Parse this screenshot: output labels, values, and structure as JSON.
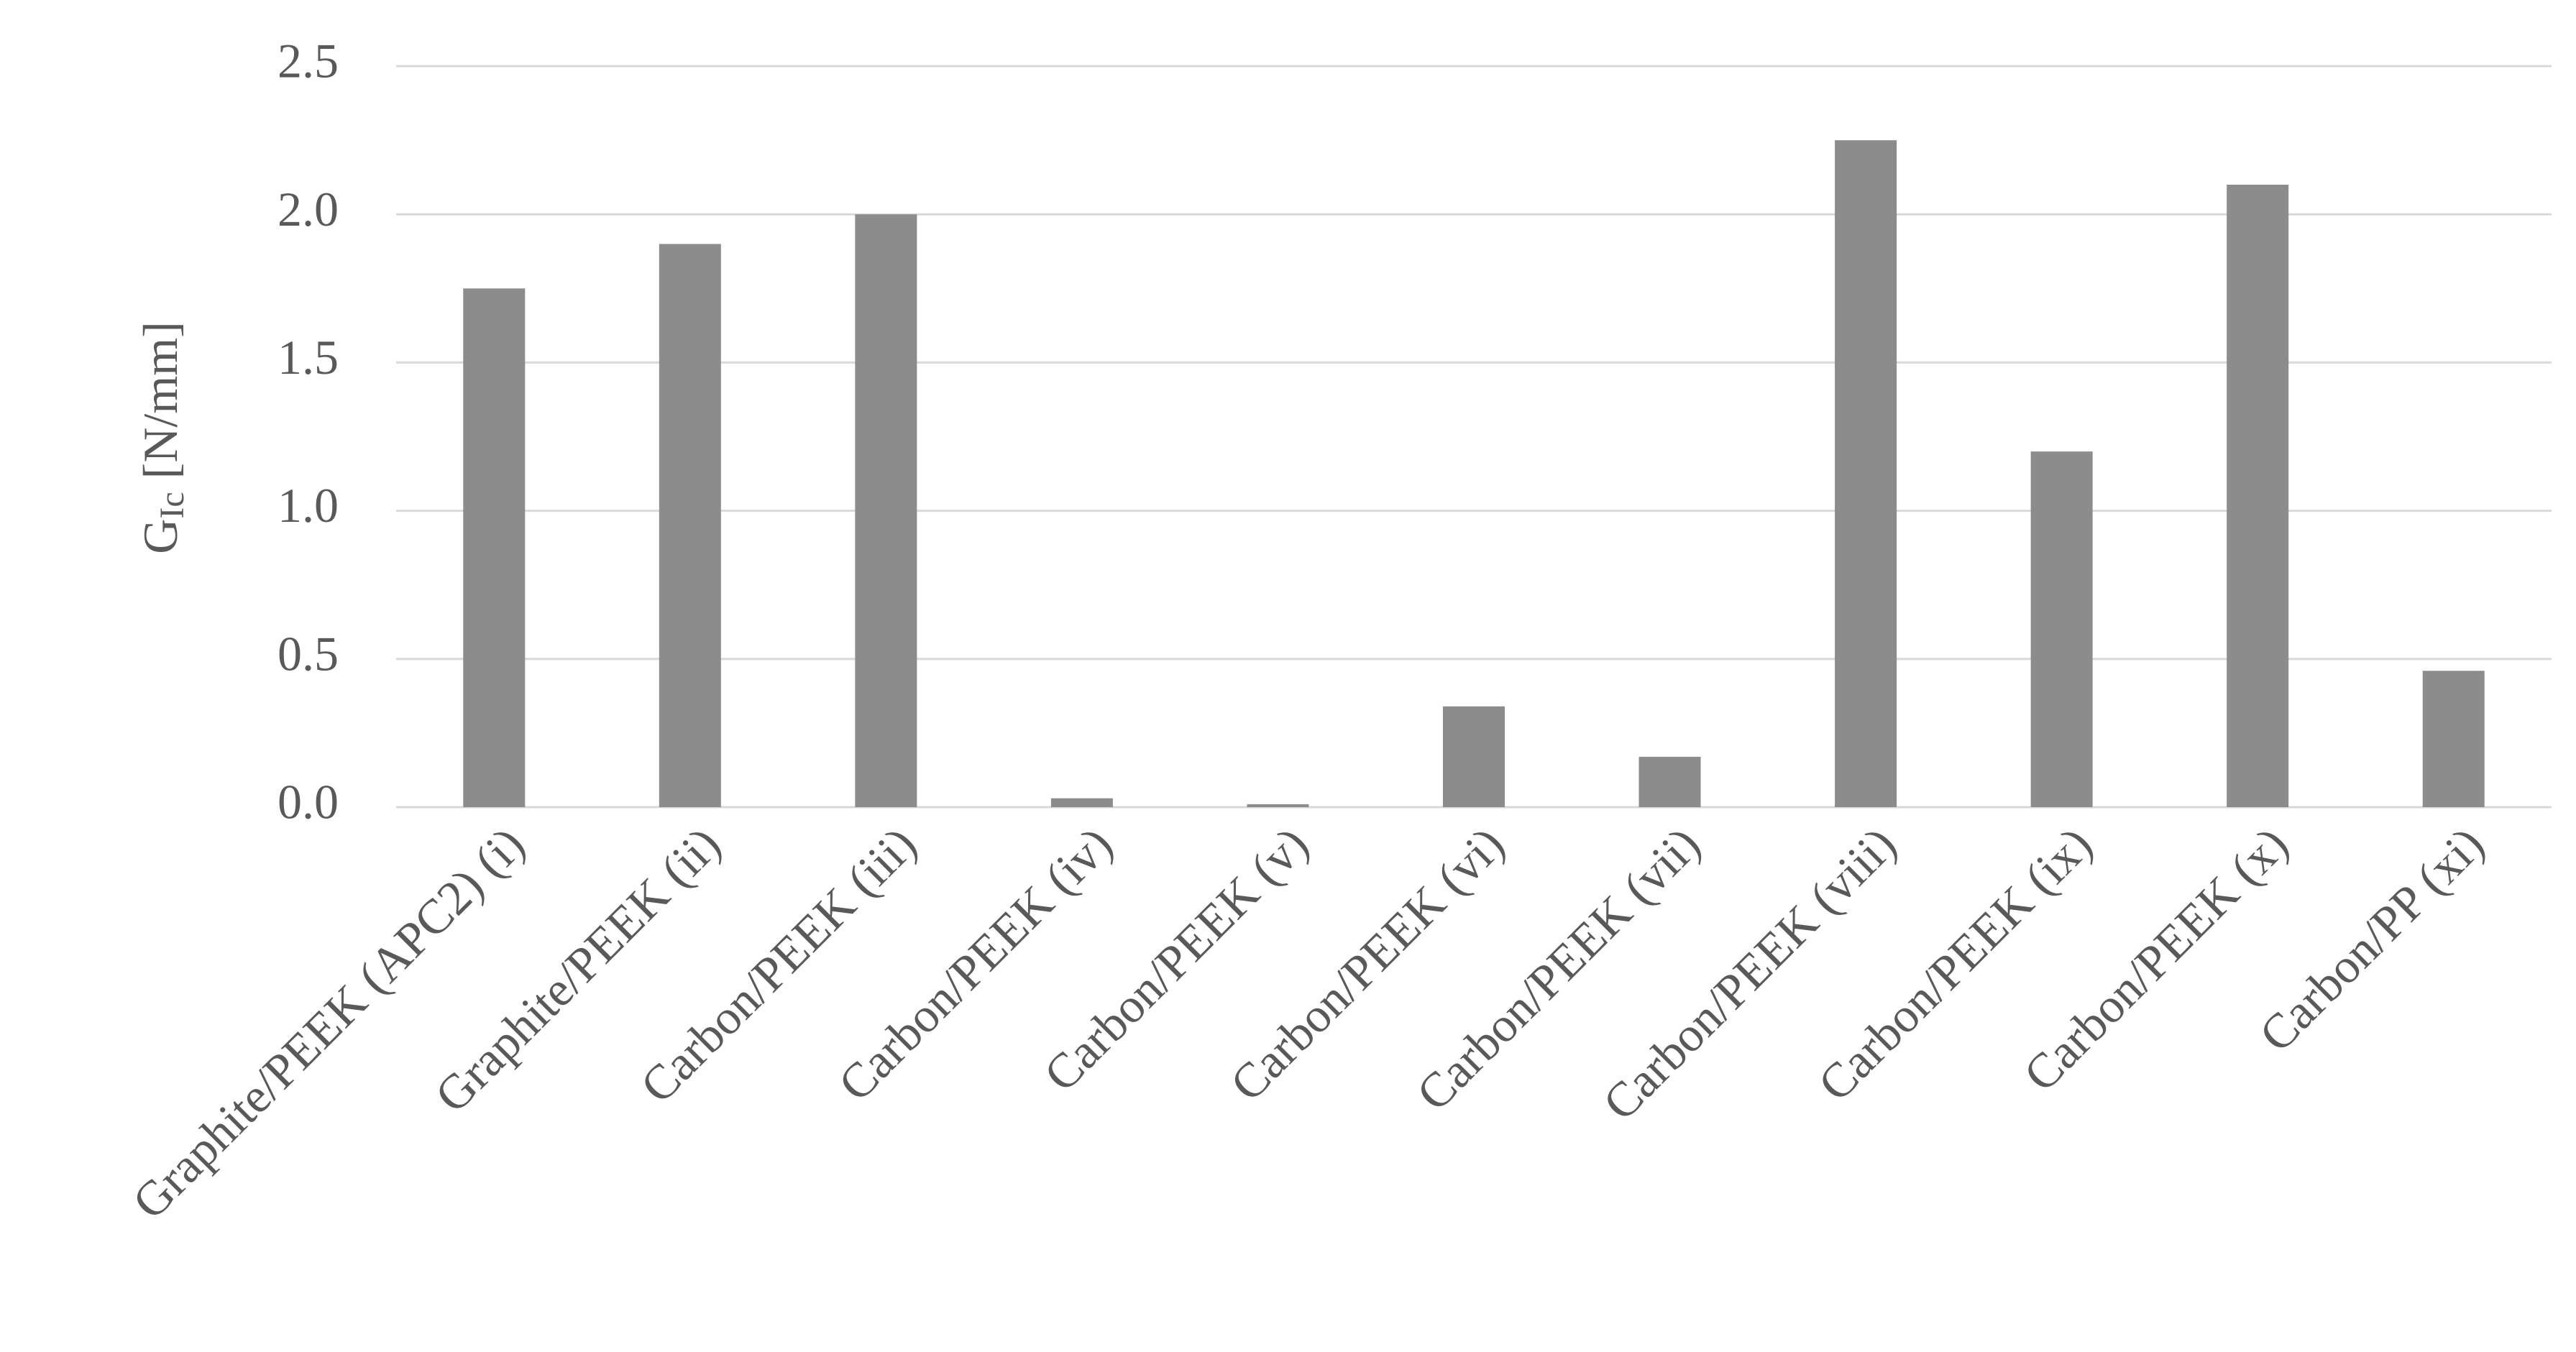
{
  "chart_data": {
    "type": "bar",
    "y_label": {
      "symbol": "G",
      "subscript": "Ic",
      "unit": "[N/mm]"
    },
    "categories": [
      "Graphite/PEEK (APC2) (i)",
      "Graphite/PEEK (ii)",
      "Carbon/PEEK (iii)",
      "Carbon/PEEK (iv)",
      "Carbon/PEEK (v)",
      "Carbon/PEEK (vi)",
      "Carbon/PEEK (vii)",
      "Carbon/PEEK (viii)",
      "Carbon/PEEK (ix)",
      "Carbon/PEEK (x)",
      "Carbon/PP (xi)"
    ],
    "values": [
      1.75,
      1.9,
      2.0,
      0.03,
      0.01,
      0.34,
      0.17,
      2.25,
      1.2,
      2.1,
      0.46
    ],
    "color": "#8c8c8c",
    "ylim": [
      0,
      2.5
    ],
    "yticks": [
      {
        "value": 0,
        "label": "0.0"
      },
      0.5,
      {
        "value": 1,
        "label": "1.0"
      },
      1.5,
      {
        "value": 2,
        "label": "2.0"
      },
      2.5
    ],
    "grid": true
  }
}
